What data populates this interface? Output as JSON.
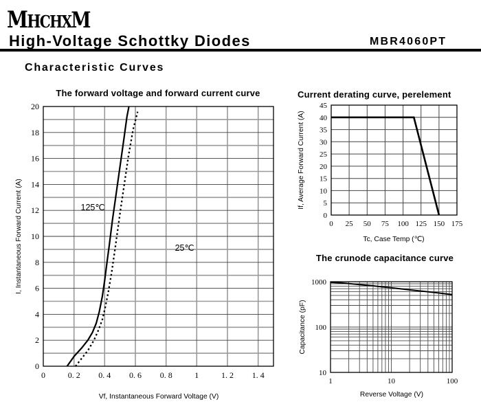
{
  "header": {
    "logo": "MHCHXM",
    "title": "High-Voltage Schottky Diodes",
    "part_number": "MBR4060PT",
    "section_title": "Characteristic Curves"
  },
  "chart_data": [
    {
      "id": "fv",
      "type": "line",
      "title": "The forward voltage and forward current curve",
      "xlabel": "Vf, Instantaneous Forward Voltage (V)",
      "ylabel": "I, Instantaneous Forward Current (A)",
      "xscale": "linear",
      "yscale": "linear",
      "xlim": [
        0,
        1.5
      ],
      "ylim": [
        0,
        20
      ],
      "grid_x": [
        0.2,
        0.4,
        0.6,
        0.8,
        1.0,
        1.2,
        1.4
      ],
      "grid_y": [
        1,
        2,
        3,
        4,
        5,
        6,
        7,
        8,
        9,
        10,
        11,
        12,
        13,
        14,
        15,
        16,
        17,
        18,
        19
      ],
      "x_ticks": [
        {
          "v": 0,
          "label": "0"
        },
        {
          "v": 0.2,
          "label": "0. 2"
        },
        {
          "v": 0.4,
          "label": "0. 4"
        },
        {
          "v": 0.6,
          "label": "0. 6"
        },
        {
          "v": 0.8,
          "label": "0. 8"
        },
        {
          "v": 1,
          "label": "1"
        },
        {
          "v": 1.2,
          "label": "1. 2"
        },
        {
          "v": 1.4,
          "label": "1. 4"
        }
      ],
      "y_ticks": [
        {
          "v": 0,
          "label": "0"
        },
        {
          "v": 2,
          "label": "2"
        },
        {
          "v": 4,
          "label": "4"
        },
        {
          "v": 6,
          "label": "6"
        },
        {
          "v": 8,
          "label": "8"
        },
        {
          "v": 10,
          "label": "10"
        },
        {
          "v": 12,
          "label": "12"
        },
        {
          "v": 14,
          "label": "14"
        },
        {
          "v": 16,
          "label": "16"
        },
        {
          "v": 18,
          "label": "18"
        },
        {
          "v": 20,
          "label": "20"
        }
      ],
      "series": [
        {
          "name": "125C",
          "style": "solid",
          "width": 2.2,
          "points": [
            [
              0.155,
              0
            ],
            [
              0.2,
              0.75
            ],
            [
              0.25,
              1.4
            ],
            [
              0.29,
              2.0
            ],
            [
              0.32,
              2.6
            ],
            [
              0.345,
              3.3
            ],
            [
              0.365,
              4.2
            ],
            [
              0.385,
              5.4
            ],
            [
              0.4,
              6.6
            ],
            [
              0.415,
              8.0
            ],
            [
              0.43,
              9.3
            ],
            [
              0.45,
              11.2
            ],
            [
              0.475,
              13.3
            ],
            [
              0.5,
              15.4
            ],
            [
              0.525,
              17.5
            ],
            [
              0.545,
              19.2
            ],
            [
              0.558,
              20.0
            ]
          ]
        },
        {
          "name": "25C",
          "style": "dashed",
          "width": 2.3,
          "points": [
            [
              0.21,
              0
            ],
            [
              0.25,
              0.6
            ],
            [
              0.29,
              1.2
            ],
            [
              0.33,
              2.0
            ],
            [
              0.36,
              2.8
            ],
            [
              0.385,
              3.6
            ],
            [
              0.405,
              4.6
            ],
            [
              0.425,
              5.8
            ],
            [
              0.445,
              7.2
            ],
            [
              0.465,
              8.8
            ],
            [
              0.485,
              10.5
            ],
            [
              0.505,
              12.2
            ],
            [
              0.53,
              14.2
            ],
            [
              0.555,
              16.2
            ],
            [
              0.585,
              18.2
            ],
            [
              0.615,
              19.6
            ]
          ]
        }
      ],
      "annotations": [
        {
          "text": "125℃",
          "x": 0.244,
          "y": 12.0
        },
        {
          "text": "25℃",
          "x": 0.858,
          "y": 8.9
        }
      ]
    },
    {
      "id": "derating",
      "type": "line",
      "title": "Current derating curve, perelement",
      "xlabel": "Tc, Case Temp (℃)",
      "ylabel": "If, Average Forward Current (A)",
      "xscale": "linear",
      "yscale": "linear",
      "xlim": [
        0,
        175
      ],
      "ylim": [
        0,
        45
      ],
      "grid_x": [
        25,
        50,
        75,
        100,
        125,
        150
      ],
      "grid_y": [
        5,
        10,
        15,
        20,
        25,
        30,
        35,
        40
      ],
      "x_ticks": [
        {
          "v": 0,
          "label": "0"
        },
        {
          "v": 25,
          "label": "25"
        },
        {
          "v": 50,
          "label": "50"
        },
        {
          "v": 75,
          "label": "75"
        },
        {
          "v": 100,
          "label": "100"
        },
        {
          "v": 125,
          "label": "125"
        },
        {
          "v": 150,
          "label": "150"
        },
        {
          "v": 175,
          "label": "175"
        }
      ],
      "y_ticks": [
        {
          "v": 0,
          "label": "0"
        },
        {
          "v": 5,
          "label": "5"
        },
        {
          "v": 10,
          "label": "10"
        },
        {
          "v": 15,
          "label": "15"
        },
        {
          "v": 20,
          "label": "20"
        },
        {
          "v": 25,
          "label": "25"
        },
        {
          "v": 30,
          "label": "30"
        },
        {
          "v": 35,
          "label": "35"
        },
        {
          "v": 40,
          "label": "40"
        },
        {
          "v": 45,
          "label": "45"
        }
      ],
      "series": [
        {
          "name": "derating",
          "style": "solid",
          "width": 2.6,
          "points": [
            [
              0,
              40
            ],
            [
              115,
              40
            ],
            [
              150,
              0
            ]
          ]
        }
      ],
      "annotations": []
    },
    {
      "id": "cap",
      "type": "line",
      "title": "The crunode capacitance curve",
      "xlabel": "Reverse Voltage (V)",
      "ylabel": "Capacitance (pF)",
      "xscale": "log",
      "yscale": "log",
      "xlim": [
        1,
        100
      ],
      "ylim": [
        10,
        1000
      ],
      "grid_x": [
        2,
        3,
        4,
        5,
        6,
        7,
        8,
        9,
        10,
        20,
        30,
        40,
        50,
        60,
        70,
        80,
        90
      ],
      "grid_y": [
        20,
        30,
        40,
        50,
        60,
        70,
        80,
        90,
        100,
        200,
        300,
        400,
        500,
        600,
        700,
        800,
        900
      ],
      "x_ticks": [
        {
          "v": 1,
          "label": "1"
        },
        {
          "v": 10,
          "label": "10"
        },
        {
          "v": 100,
          "label": "100"
        }
      ],
      "y_ticks": [
        {
          "v": 10,
          "label": "10"
        },
        {
          "v": 100,
          "label": "100"
        },
        {
          "v": 1000,
          "label": "1000"
        }
      ],
      "series": [
        {
          "name": "capacitance",
          "style": "solid",
          "width": 2,
          "points": [
            [
              1,
              970
            ],
            [
              1.5,
              940
            ],
            [
              2,
              910
            ],
            [
              3,
              865
            ],
            [
              4,
              835
            ],
            [
              5,
              810
            ],
            [
              7,
              770
            ],
            [
              10,
              735
            ],
            [
              15,
              690
            ],
            [
              20,
              660
            ],
            [
              30,
              625
            ],
            [
              40,
              600
            ],
            [
              50,
              580
            ],
            [
              70,
              550
            ],
            [
              100,
              520
            ]
          ]
        }
      ],
      "annotations": []
    }
  ]
}
